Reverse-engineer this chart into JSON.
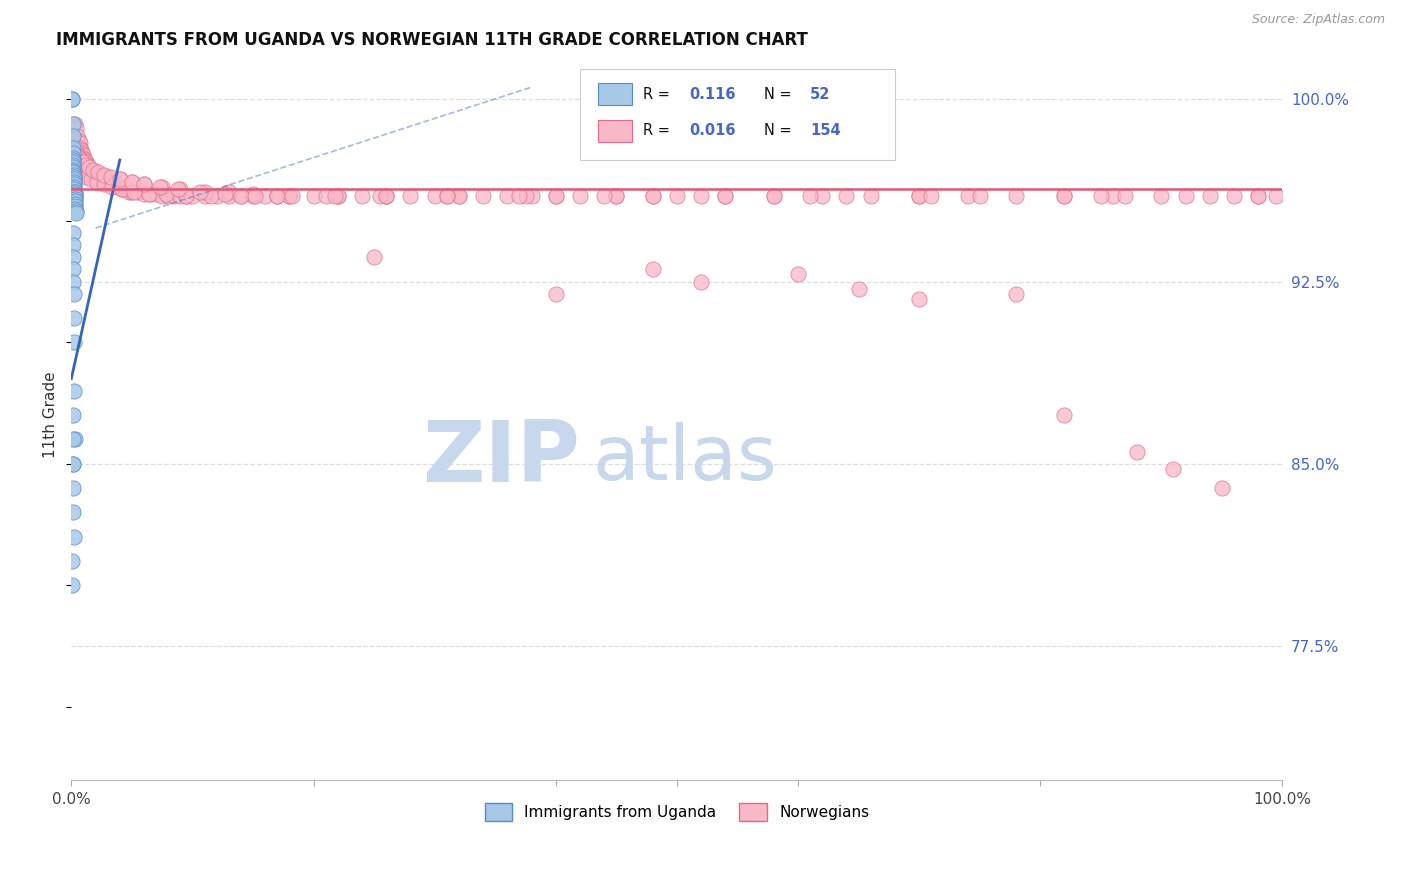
{
  "title": "IMMIGRANTS FROM UGANDA VS NORWEGIAN 11TH GRADE CORRELATION CHART",
  "source": "Source: ZipAtlas.com",
  "ylabel": "11th Grade",
  "y_tick_labels_right": [
    "100.0%",
    "92.5%",
    "85.0%",
    "77.5%"
  ],
  "y_tick_values_right": [
    1.0,
    0.925,
    0.85,
    0.775
  ],
  "legend_R_uganda": "0.116",
  "legend_N_uganda": "52",
  "legend_R_norwegian": "0.016",
  "legend_N_norwegian": "154",
  "color_uganda_fill": "#a8c8e8",
  "color_uganda_edge": "#5588cc",
  "color_norway_fill": "#f8b8c8",
  "color_norway_edge": "#e06888",
  "color_uganda_line": "#3366bb",
  "color_norway_line": "#e05878",
  "color_title": "#111111",
  "color_source": "#999999",
  "color_axis_label": "#333333",
  "color_right_labels": "#4466cc",
  "color_grid": "#dddddd",
  "watermark_zip_color": "#c8d8ec",
  "watermark_atlas_color": "#c8d8ec",
  "xlim": [
    0.0,
    1.0
  ],
  "ylim": [
    0.72,
    1.02
  ],
  "figsize": [
    14.06,
    8.92
  ],
  "dpi": 100,
  "uganda_x": [
    0.0008,
    0.0009,
    0.001,
    0.001,
    0.0011,
    0.0012,
    0.0013,
    0.0014,
    0.0015,
    0.0016,
    0.0016,
    0.0017,
    0.0018,
    0.0018,
    0.0019,
    0.002,
    0.0021,
    0.0022,
    0.0023,
    0.0024,
    0.0025,
    0.0026,
    0.0027,
    0.0027,
    0.0028,
    0.0029,
    0.003,
    0.0031,
    0.0032,
    0.0033,
    0.0034,
    0.0035,
    0.0036,
    0.001,
    0.0012,
    0.0014,
    0.0016,
    0.0018,
    0.002,
    0.0022,
    0.0024,
    0.0026,
    0.0028,
    0.001,
    0.0014,
    0.0018,
    0.0022,
    0.0008,
    0.0009,
    0.0011,
    0.0013,
    0.0015
  ],
  "uganda_y": [
    1.0,
    1.0,
    0.99,
    0.985,
    0.98,
    0.978,
    0.976,
    0.975,
    0.974,
    0.973,
    0.972,
    0.971,
    0.97,
    0.97,
    0.969,
    0.968,
    0.967,
    0.966,
    0.965,
    0.964,
    0.963,
    0.962,
    0.962,
    0.961,
    0.96,
    0.96,
    0.959,
    0.958,
    0.957,
    0.956,
    0.955,
    0.954,
    0.953,
    0.945,
    0.94,
    0.935,
    0.93,
    0.925,
    0.92,
    0.91,
    0.9,
    0.88,
    0.86,
    0.85,
    0.84,
    0.83,
    0.82,
    0.81,
    0.8,
    0.85,
    0.87,
    0.86
  ],
  "norway_x": [
    0.003,
    0.004,
    0.005,
    0.006,
    0.007,
    0.007,
    0.008,
    0.009,
    0.01,
    0.01,
    0.011,
    0.012,
    0.013,
    0.014,
    0.015,
    0.015,
    0.016,
    0.017,
    0.018,
    0.019,
    0.02,
    0.022,
    0.025,
    0.028,
    0.03,
    0.032,
    0.035,
    0.038,
    0.04,
    0.042,
    0.045,
    0.048,
    0.05,
    0.055,
    0.06,
    0.065,
    0.07,
    0.075,
    0.08,
    0.085,
    0.09,
    0.095,
    0.1,
    0.11,
    0.12,
    0.13,
    0.14,
    0.15,
    0.16,
    0.17,
    0.18,
    0.2,
    0.22,
    0.24,
    0.26,
    0.28,
    0.3,
    0.32,
    0.34,
    0.36,
    0.38,
    0.4,
    0.42,
    0.45,
    0.48,
    0.5,
    0.54,
    0.58,
    0.62,
    0.66,
    0.7,
    0.74,
    0.78,
    0.82,
    0.86,
    0.9,
    0.94,
    0.98,
    0.995,
    0.005,
    0.008,
    0.011,
    0.015,
    0.02,
    0.025,
    0.03,
    0.04,
    0.05,
    0.06,
    0.075,
    0.09,
    0.11,
    0.13,
    0.15,
    0.18,
    0.22,
    0.26,
    0.32,
    0.4,
    0.48,
    0.58,
    0.7,
    0.85,
    0.004,
    0.006,
    0.009,
    0.012,
    0.016,
    0.021,
    0.027,
    0.034,
    0.042,
    0.052,
    0.064,
    0.078,
    0.095,
    0.115,
    0.14,
    0.17,
    0.21,
    0.255,
    0.31,
    0.375,
    0.45,
    0.54,
    0.64,
    0.75,
    0.87,
    0.96,
    0.003,
    0.004,
    0.005,
    0.006,
    0.008,
    0.01,
    0.012,
    0.015,
    0.018,
    0.022,
    0.027,
    0.033,
    0.04,
    0.05,
    0.06,
    0.073,
    0.088,
    0.106,
    0.127,
    0.152,
    0.182,
    0.218,
    0.26,
    0.31,
    0.37,
    0.44,
    0.52,
    0.61,
    0.71,
    0.82,
    0.92,
    0.98
  ],
  "norway_y": [
    0.99,
    0.988,
    0.985,
    0.983,
    0.982,
    0.98,
    0.979,
    0.978,
    0.977,
    0.976,
    0.975,
    0.974,
    0.973,
    0.972,
    0.972,
    0.971,
    0.97,
    0.97,
    0.969,
    0.969,
    0.968,
    0.967,
    0.967,
    0.966,
    0.966,
    0.965,
    0.965,
    0.964,
    0.964,
    0.963,
    0.963,
    0.962,
    0.962,
    0.962,
    0.961,
    0.961,
    0.961,
    0.96,
    0.96,
    0.96,
    0.96,
    0.96,
    0.96,
    0.96,
    0.96,
    0.96,
    0.96,
    0.96,
    0.96,
    0.96,
    0.96,
    0.96,
    0.96,
    0.96,
    0.96,
    0.96,
    0.96,
    0.96,
    0.96,
    0.96,
    0.96,
    0.96,
    0.96,
    0.96,
    0.96,
    0.96,
    0.96,
    0.96,
    0.96,
    0.96,
    0.96,
    0.96,
    0.96,
    0.96,
    0.96,
    0.96,
    0.96,
    0.96,
    0.96,
    0.975,
    0.973,
    0.972,
    0.971,
    0.97,
    0.969,
    0.968,
    0.967,
    0.966,
    0.965,
    0.964,
    0.963,
    0.962,
    0.962,
    0.961,
    0.96,
    0.96,
    0.96,
    0.96,
    0.96,
    0.96,
    0.96,
    0.96,
    0.96,
    0.972,
    0.97,
    0.969,
    0.968,
    0.967,
    0.966,
    0.965,
    0.964,
    0.963,
    0.962,
    0.961,
    0.961,
    0.96,
    0.96,
    0.96,
    0.96,
    0.96,
    0.96,
    0.96,
    0.96,
    0.96,
    0.96,
    0.96,
    0.96,
    0.96,
    0.96,
    0.98,
    0.978,
    0.977,
    0.976,
    0.975,
    0.974,
    0.973,
    0.972,
    0.971,
    0.97,
    0.969,
    0.968,
    0.967,
    0.966,
    0.965,
    0.964,
    0.963,
    0.962,
    0.961,
    0.96,
    0.96,
    0.96,
    0.96,
    0.96,
    0.96,
    0.96,
    0.96,
    0.96,
    0.96,
    0.96,
    0.96,
    0.96
  ],
  "norway_outliers_x": [
    0.25,
    0.4,
    0.48,
    0.52,
    0.6,
    0.65,
    0.7,
    0.78,
    0.82,
    0.88,
    0.91,
    0.95
  ],
  "norway_outliers_y": [
    0.935,
    0.92,
    0.93,
    0.925,
    0.928,
    0.922,
    0.918,
    0.92,
    0.87,
    0.855,
    0.848,
    0.84
  ]
}
